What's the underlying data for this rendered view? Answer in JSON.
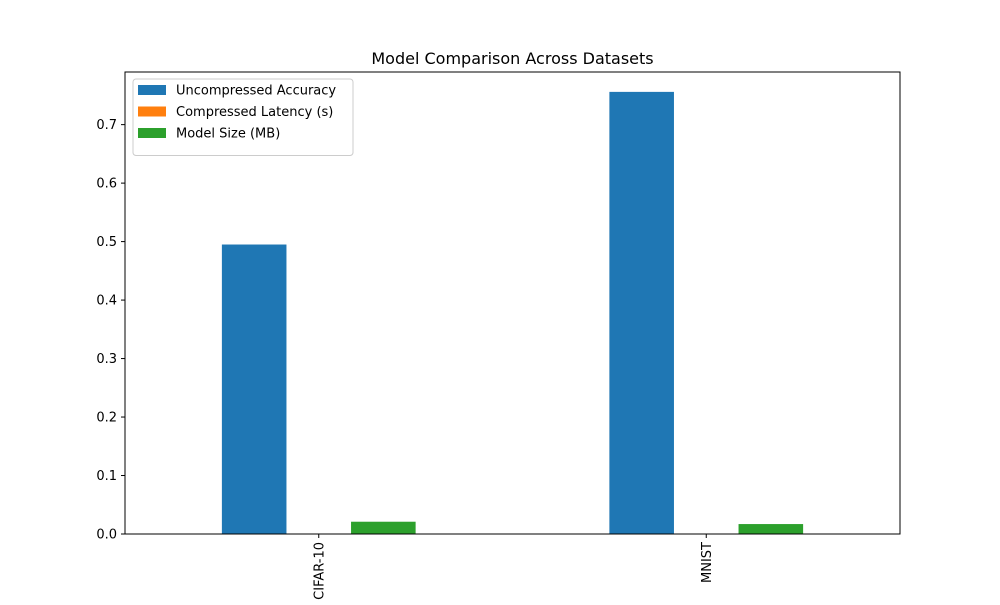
{
  "chart_data": {
    "type": "bar",
    "title": "Model Comparison Across Datasets",
    "xlabel": "",
    "ylabel": "",
    "categories": [
      "CIFAR-10",
      "MNIST"
    ],
    "series": [
      {
        "name": "Uncompressed Accuracy",
        "color": "#1f77b4",
        "values": [
          0.495,
          0.756
        ]
      },
      {
        "name": "Compressed Latency (s)",
        "color": "#ff7f0e",
        "values": [
          0.0005,
          0.0004
        ]
      },
      {
        "name": "Model Size (MB)",
        "color": "#2ca02c",
        "values": [
          0.021,
          0.017
        ]
      }
    ],
    "ylim": [
      0,
      0.79
    ],
    "yticks": [
      0.0,
      0.1,
      0.2,
      0.3,
      0.4,
      0.5,
      0.6,
      0.7
    ],
    "ytick_labels": [
      "0.0",
      "0.1",
      "0.2",
      "0.3",
      "0.4",
      "0.5",
      "0.6",
      "0.7"
    ],
    "xtick_rotation": "vertical",
    "grid": false,
    "legend_position": "top-left"
  }
}
